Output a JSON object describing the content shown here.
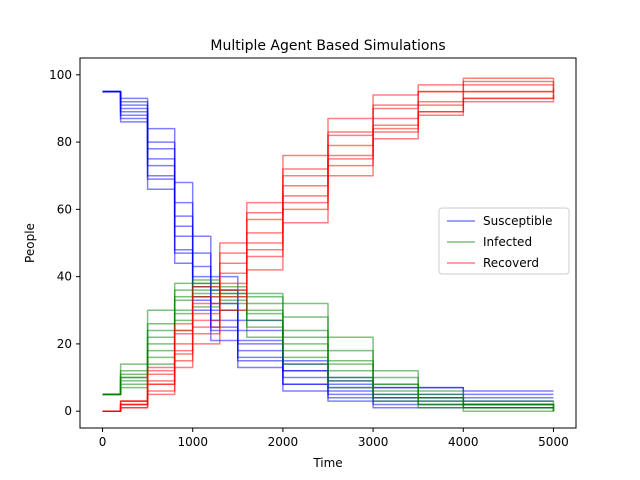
{
  "chart_data": {
    "type": "line",
    "title": "Multiple Agent Based Simulations",
    "xlabel": "Time",
    "ylabel": "People",
    "xlim": [
      -250,
      5250
    ],
    "ylim": [
      -5,
      105
    ],
    "xticks": [
      0,
      1000,
      2000,
      3000,
      4000,
      5000
    ],
    "yticks": [
      0,
      20,
      40,
      60,
      80,
      100
    ],
    "grid": false,
    "legend_position": "right",
    "series_groups": [
      {
        "name": "Susceptible",
        "color": "#0000ff",
        "runs": [
          {
            "x": [
              0,
              200,
              500,
              800,
              1000,
              1200,
              1500,
              2000,
              2500,
              3000,
              4000,
              5000
            ],
            "y": [
              95,
              90,
              75,
              55,
              40,
              30,
              20,
              12,
              9,
              7,
              6,
              6
            ]
          },
          {
            "x": [
              0,
              200,
              500,
              800,
              1000,
              1200,
              1500,
              2000,
              2500,
              3000,
              4000,
              5000
            ],
            "y": [
              95,
              88,
              70,
              48,
              33,
              24,
              16,
              8,
              5,
              3,
              2,
              2
            ]
          },
          {
            "x": [
              0,
              200,
              500,
              800,
              1000,
              1200,
              1500,
              2000,
              2500,
              3000,
              4000,
              5000
            ],
            "y": [
              95,
              92,
              80,
              62,
              47,
              36,
              24,
              14,
              10,
              7,
              5,
              5
            ]
          },
          {
            "x": [
              0,
              200,
              500,
              800,
              1000,
              1200,
              1500,
              2000,
              2500,
              3000,
              4000,
              5000
            ],
            "y": [
              95,
              86,
              66,
              44,
              30,
              21,
              13,
              6,
              3,
              1,
              1,
              1
            ]
          },
          {
            "x": [
              0,
              200,
              500,
              800,
              1000,
              1200,
              1500,
              2000,
              2500,
              3000,
              4000,
              5000
            ],
            "y": [
              95,
              89,
              73,
              52,
              37,
              27,
              18,
              10,
              6,
              4,
              3,
              3
            ]
          },
          {
            "x": [
              0,
              200,
              500,
              800,
              1000,
              1200,
              1500,
              2000,
              2500,
              3000,
              4000,
              5000
            ],
            "y": [
              95,
              91,
              78,
              58,
              43,
              32,
              21,
              12,
              7,
              4,
              2,
              2
            ]
          },
          {
            "x": [
              0,
              200,
              500,
              800,
              1000,
              1200,
              1500,
              2000,
              2500,
              3000,
              4000,
              5000
            ],
            "y": [
              95,
              87,
              69,
              47,
              34,
              25,
              15,
              8,
              4,
              2,
              1,
              1
            ]
          },
          {
            "x": [
              0,
              200,
              500,
              800,
              1000,
              1200,
              1500,
              2000,
              2500,
              3000,
              4000,
              5000
            ],
            "y": [
              95,
              93,
              84,
              68,
              52,
              40,
              27,
              15,
              8,
              5,
              4,
              4
            ]
          }
        ]
      },
      {
        "name": "Infected",
        "color": "#008000",
        "runs": [
          {
            "x": [
              0,
              200,
              500,
              800,
              1000,
              1300,
              1600,
              2000,
              2500,
              3000,
              3500,
              4000,
              5000
            ],
            "y": [
              5,
              10,
              20,
              30,
              36,
              34,
              30,
              22,
              14,
              8,
              4,
              2,
              1
            ]
          },
          {
            "x": [
              0,
              200,
              500,
              800,
              1000,
              1300,
              1600,
              2000,
              2500,
              3000,
              3500,
              4000,
              5000
            ],
            "y": [
              5,
              12,
              26,
              36,
              38,
              33,
              27,
              18,
              10,
              5,
              2,
              1,
              0
            ]
          },
          {
            "x": [
              0,
              200,
              500,
              800,
              1000,
              1300,
              1600,
              2000,
              2500,
              3000,
              3500,
              4000,
              5000
            ],
            "y": [
              5,
              8,
              16,
              27,
              34,
              37,
              34,
              28,
              18,
              10,
              5,
              2,
              1
            ]
          },
          {
            "x": [
              0,
              200,
              500,
              800,
              1000,
              1300,
              1600,
              2000,
              2500,
              3000,
              3500,
              4000,
              5000
            ],
            "y": [
              5,
              14,
              30,
              38,
              39,
              30,
              22,
              14,
              7,
              3,
              1,
              0,
              0
            ]
          },
          {
            "x": [
              0,
              200,
              500,
              800,
              1000,
              1300,
              1600,
              2000,
              2500,
              3000,
              3500,
              4000,
              5000
            ],
            "y": [
              5,
              10,
              22,
              33,
              37,
              35,
              29,
              20,
              12,
              6,
              3,
              1,
              0
            ]
          },
          {
            "x": [
              0,
              200,
              500,
              800,
              1000,
              1300,
              1600,
              2000,
              2500,
              3000,
              3500,
              4000,
              5000
            ],
            "y": [
              5,
              9,
              18,
              29,
              35,
              36,
              32,
              24,
              15,
              8,
              4,
              2,
              0
            ]
          },
          {
            "x": [
              0,
              200,
              500,
              800,
              1000,
              1300,
              1600,
              2000,
              2500,
              3000,
              3500,
              4000,
              5000
            ],
            "y": [
              5,
              11,
              24,
              34,
              38,
              32,
              25,
              16,
              9,
              4,
              2,
              1,
              0
            ]
          },
          {
            "x": [
              0,
              200,
              500,
              800,
              1000,
              1300,
              1600,
              2000,
              2500,
              3000,
              3500,
              4000,
              5000
            ],
            "y": [
              5,
              7,
              14,
              24,
              31,
              35,
              35,
              32,
              22,
              12,
              6,
              3,
              1
            ]
          }
        ]
      },
      {
        "name": "Recoverd",
        "color": "#ff0000",
        "runs": [
          {
            "x": [
              0,
              200,
              500,
              800,
              1000,
              1300,
              1600,
              2000,
              2500,
              3000,
              3500,
              4000,
              5000
            ],
            "y": [
              0,
              2,
              8,
              18,
              27,
              38,
              50,
              64,
              76,
              84,
              89,
              92,
              94
            ]
          },
          {
            "x": [
              0,
              200,
              500,
              800,
              1000,
              1300,
              1600,
              2000,
              2500,
              3000,
              3500,
              4000,
              5000
            ],
            "y": [
              0,
              3,
              12,
              24,
              34,
              47,
              59,
              72,
              83,
              91,
              95,
              97,
              98
            ]
          },
          {
            "x": [
              0,
              200,
              500,
              800,
              1000,
              1300,
              1600,
              2000,
              2500,
              3000,
              3500,
              4000,
              5000
            ],
            "y": [
              0,
              1,
              6,
              15,
              23,
              34,
              46,
              60,
              73,
              83,
              89,
              93,
              95
            ]
          },
          {
            "x": [
              0,
              200,
              500,
              800,
              1000,
              1300,
              1600,
              2000,
              2500,
              3000,
              3500,
              4000,
              5000
            ],
            "y": [
              0,
              3,
              13,
              26,
              37,
              50,
              62,
              76,
              87,
              94,
              97,
              99,
              99
            ]
          },
          {
            "x": [
              0,
              200,
              500,
              800,
              1000,
              1300,
              1600,
              2000,
              2500,
              3000,
              3500,
              4000,
              5000
            ],
            "y": [
              0,
              2,
              9,
              20,
              29,
              41,
              53,
              67,
              79,
              87,
              92,
              95,
              97
            ]
          },
          {
            "x": [
              0,
              200,
              500,
              800,
              1000,
              1300,
              1600,
              2000,
              2500,
              3000,
              3500,
              4000,
              5000
            ],
            "y": [
              0,
              2,
              8,
              17,
              25,
              36,
              48,
              62,
              75,
              85,
              91,
              95,
              98
            ]
          },
          {
            "x": [
              0,
              200,
              500,
              800,
              1000,
              1300,
              1600,
              2000,
              2500,
              3000,
              3500,
              4000,
              5000
            ],
            "y": [
              0,
              3,
              11,
              23,
              32,
              44,
              57,
              70,
              82,
              90,
              95,
              98,
              99
            ]
          },
          {
            "x": [
              0,
              200,
              500,
              800,
              1000,
              1300,
              1600,
              2000,
              2500,
              3000,
              3500,
              4000,
              5000
            ],
            "y": [
              0,
              1,
              5,
              13,
              20,
              30,
              42,
              56,
              70,
              81,
              88,
              93,
              96
            ]
          }
        ]
      }
    ],
    "legend": [
      {
        "label": "Susceptible",
        "color": "#0000ff"
      },
      {
        "label": "Infected",
        "color": "#008000"
      },
      {
        "label": "Recoverd",
        "color": "#ff0000"
      }
    ]
  }
}
